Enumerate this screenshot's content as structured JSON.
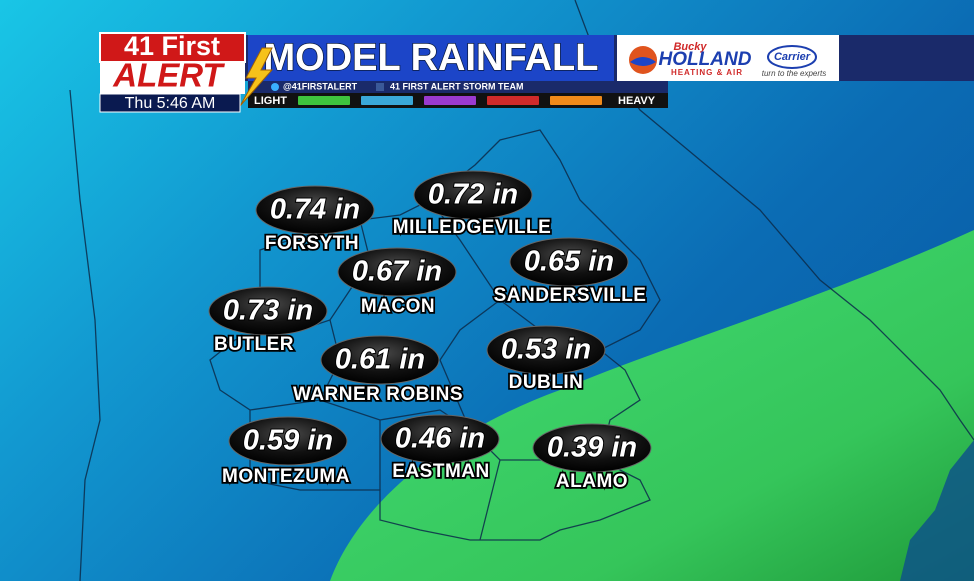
{
  "header": {
    "station_line1": "41 First",
    "station_line2": "ALERT",
    "time": "Thu 5:46 AM",
    "title": "MODEL RAINFALL",
    "twitter": "@41FIRSTALERT",
    "facebook": "41 FIRST ALERT STORM TEAM"
  },
  "sponsor": {
    "name_script": "Bucky",
    "name": "HOLLAND",
    "tagline": "HEATING & AIR",
    "brand": "Carrier",
    "brand_tagline": "turn to the experts"
  },
  "legend": {
    "low_label": "LIGHT",
    "high_label": "HEAVY",
    "colors": [
      "#3ec43e",
      "#3aa8d8",
      "#9a3ad0",
      "#d02a2a",
      "#f08a1a"
    ]
  },
  "cities": [
    {
      "name": "FORSYTH",
      "amount": "0.74 in"
    },
    {
      "name": "MILLEDGEVILLE",
      "amount": "0.72 in"
    },
    {
      "name": "MACON",
      "amount": "0.67 in"
    },
    {
      "name": "SANDERSVILLE",
      "amount": "0.65 in"
    },
    {
      "name": "BUTLER",
      "amount": "0.73 in"
    },
    {
      "name": "WARNER ROBINS",
      "amount": "0.61 in"
    },
    {
      "name": "DUBLIN",
      "amount": "0.53 in"
    },
    {
      "name": "MONTEZUMA",
      "amount": "0.59 in"
    },
    {
      "name": "EASTMAN",
      "amount": "0.46 in"
    },
    {
      "name": "ALAMO",
      "amount": "0.39 in"
    }
  ]
}
